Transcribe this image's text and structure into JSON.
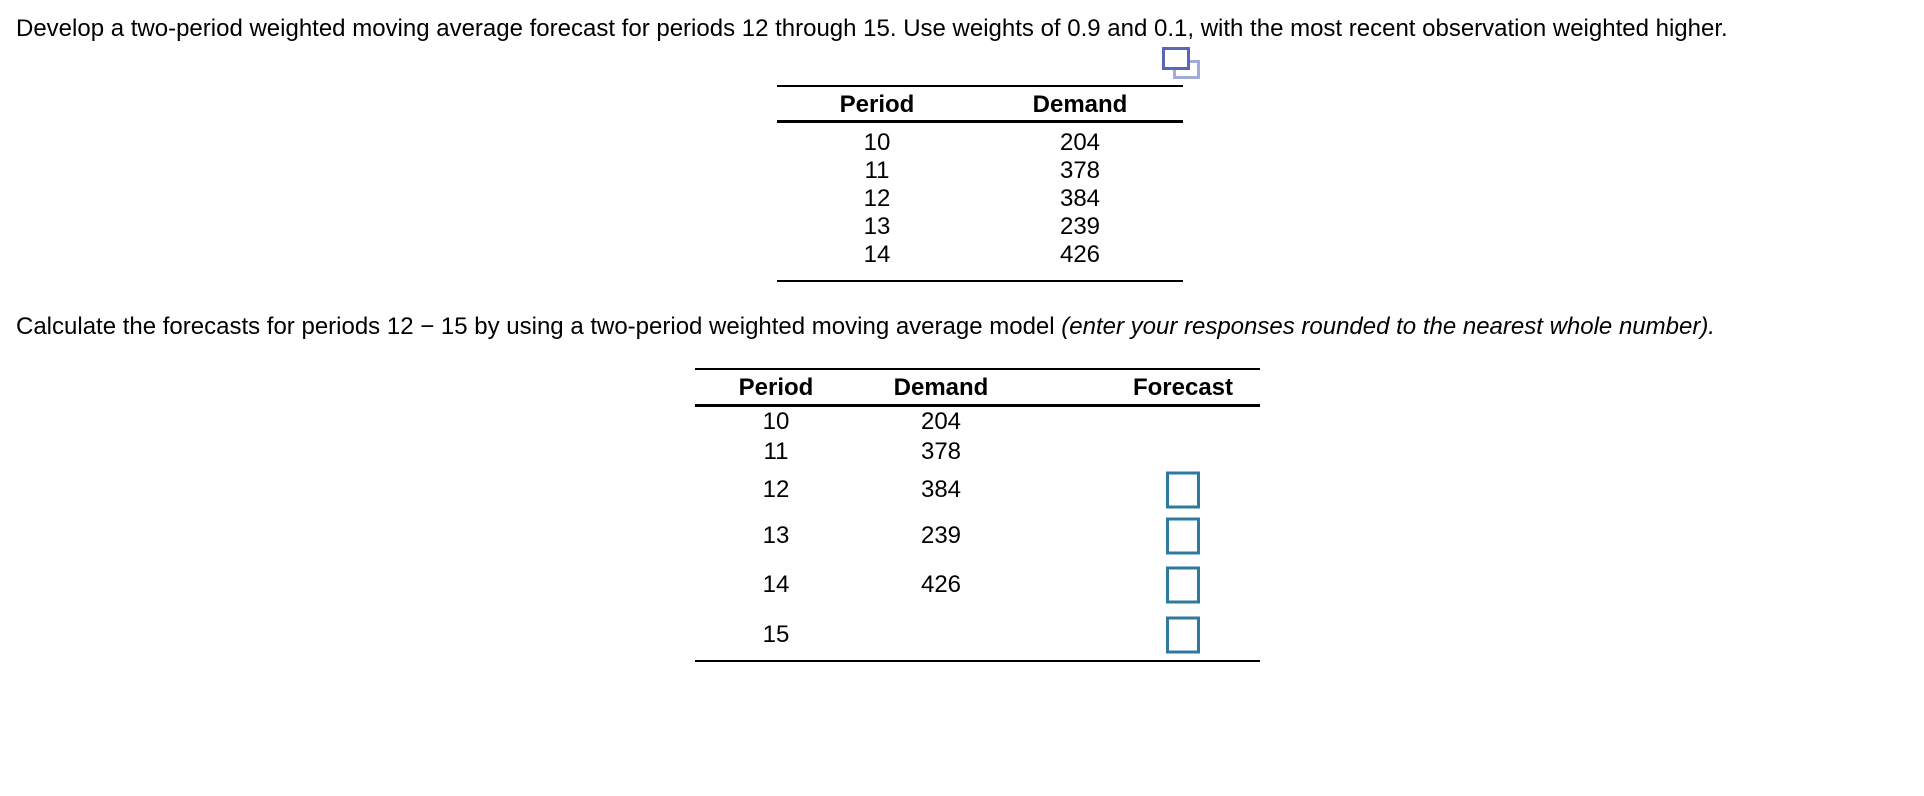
{
  "instructions": {
    "line1": "Develop a two-period weighted moving average forecast for periods 12 through 15. Use weights of 0.9 and 0.1, with the most recent observation weighted higher.",
    "line2_normal": "Calculate the forecasts for periods 12 − 15 by using a two-period weighted moving average model ",
    "line2_italic": "(enter your responses rounded to the nearest whole number)."
  },
  "icons": {
    "copy_icon": "copy-table-icon",
    "copy_dark_color": "#5A68B4",
    "copy_light_color": "#A2AAD8"
  },
  "data_table": {
    "headers": {
      "period": "Period",
      "demand": "Demand"
    },
    "rows": [
      {
        "period": "10",
        "demand": "204"
      },
      {
        "period": "11",
        "demand": "378"
      },
      {
        "period": "12",
        "demand": "384"
      },
      {
        "period": "13",
        "demand": "239"
      },
      {
        "period": "14",
        "demand": "426"
      }
    ]
  },
  "answer_table": {
    "headers": {
      "period": "Period",
      "demand": "Demand",
      "forecast": "Forecast"
    },
    "rows": [
      {
        "period": "10",
        "demand": "204"
      },
      {
        "period": "11",
        "demand": "378"
      },
      {
        "period": "12",
        "demand": "384"
      },
      {
        "period": "13",
        "demand": "239"
      },
      {
        "period": "14",
        "demand": "426"
      },
      {
        "period": "15",
        "demand": ""
      }
    ],
    "inputs": {
      "p12": "",
      "p13": "",
      "p14": "",
      "p15": ""
    },
    "input_border_color": "#2D7A9E"
  }
}
